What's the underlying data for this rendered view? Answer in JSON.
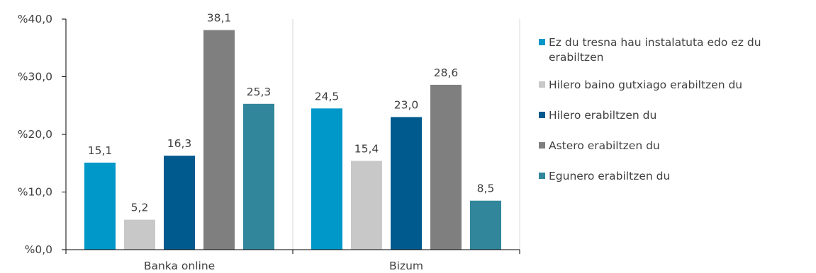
{
  "chart_data": {
    "type": "bar",
    "categories": [
      "Banka online",
      "Bizum"
    ],
    "series": [
      {
        "name": "Ez du tresna hau instalatuta edo ez du erabiltzen",
        "color": "#0097c9",
        "values": [
          15.1,
          24.5
        ]
      },
      {
        "name": "Hilero baino gutxiago erabiltzen du",
        "color": "#c8c8c8",
        "values": [
          5.2,
          15.4
        ]
      },
      {
        "name": "Hilero erabiltzen du",
        "color": "#005a8e",
        "values": [
          16.3,
          23.0
        ]
      },
      {
        "name": "Astero erabiltzen du",
        "color": "#7f7f7f",
        "values": [
          38.1,
          28.6
        ]
      },
      {
        "name": "Egunero erabiltzen du",
        "color": "#31869b",
        "values": [
          25.3,
          8.5
        ]
      }
    ],
    "ylim": [
      0,
      40
    ],
    "yticks": [
      0,
      10,
      20,
      30,
      40
    ],
    "ytick_labels": [
      "%0,0",
      "%10,0",
      "%20,0",
      "%30,0",
      "%40,0"
    ],
    "data_labels": [
      [
        "15,1",
        "24,5"
      ],
      [
        "5,2",
        "15,4"
      ],
      [
        "16,3",
        "23,0"
      ],
      [
        "38,1",
        "28,6"
      ],
      [
        "25,3",
        "8,5"
      ]
    ],
    "grid": "vertical separator between categories",
    "legend_position": "right"
  }
}
